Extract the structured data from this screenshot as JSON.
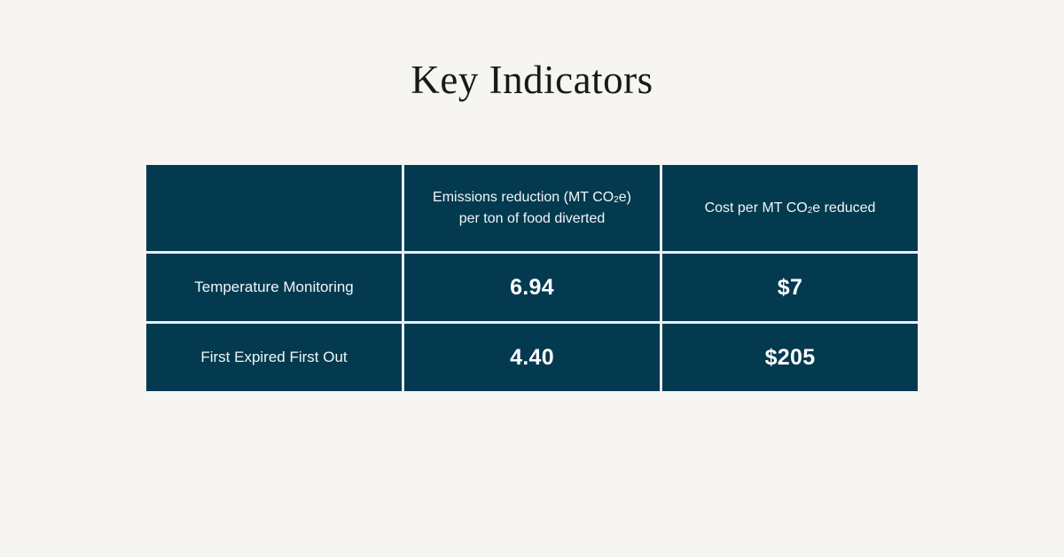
{
  "page": {
    "title": "Key Indicators",
    "background_color": "#f6f5f2",
    "cell_color": "#033a50",
    "grid_line_color": "#e9eff1",
    "cell_text_color": "#f2f6f7",
    "value_text_color": "#ffffff",
    "title_color": "#191919"
  },
  "table": {
    "columns": {
      "emissions": {
        "line1_pre": "Emissions reduction (MT CO",
        "sub": "2",
        "line1_post": "e)",
        "line2": "per ton of food diverted"
      },
      "cost": {
        "pre": "Cost per MT CO",
        "sub": "2",
        "post": "e reduced"
      }
    },
    "rows": [
      {
        "label": "Temperature Monitoring",
        "emissions": "6.94",
        "cost": "$7"
      },
      {
        "label": "First Expired First Out",
        "emissions": "4.40",
        "cost": "$205"
      }
    ]
  },
  "chart_data": {
    "type": "table",
    "title": "Key Indicators",
    "columns": [
      "",
      "Emissions reduction (MT CO2e) per ton of food diverted",
      "Cost per MT CO2e reduced"
    ],
    "rows": [
      [
        "Temperature Monitoring",
        6.94,
        "$7"
      ],
      [
        "First Expired First Out",
        4.4,
        "$205"
      ]
    ],
    "legend_position": "none",
    "grid": false
  }
}
